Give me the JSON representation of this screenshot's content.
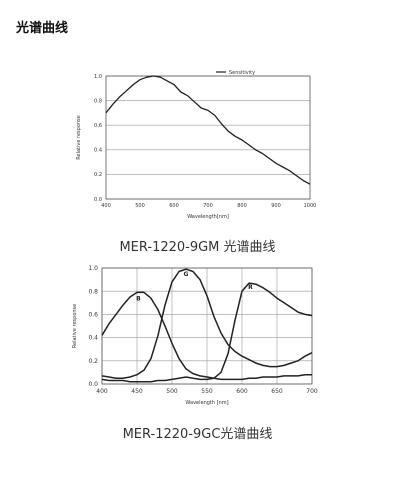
{
  "page": {
    "title": "光谱曲线"
  },
  "captions": {
    "mono": "MER-1220-9GM 光谱曲线",
    "color": "MER-1220-9GC光谱曲线"
  },
  "colors": {
    "line": "#222222",
    "grid": "#9a9a9a",
    "frame": "#555555"
  },
  "chart_data": [
    {
      "type": "line",
      "xlabel": "Wavelength[nm]",
      "ylabel": "Relative response",
      "xlim": [
        400,
        1000
      ],
      "ylim": [
        0,
        1.0
      ],
      "xticks": [
        "400",
        "500",
        "600",
        "700",
        "800",
        "900",
        "1000"
      ],
      "yticks": [
        "0.0",
        "0.2",
        "0.4",
        "0.6",
        "0.8",
        "1.0"
      ],
      "legend": {
        "position": "top-right",
        "entries": [
          "Sensitivity"
        ]
      },
      "grid": "horizontal",
      "series": [
        {
          "name": "Sensitivity",
          "x": [
            400,
            420,
            440,
            460,
            480,
            500,
            520,
            540,
            560,
            580,
            600,
            620,
            640,
            660,
            680,
            700,
            720,
            740,
            760,
            780,
            800,
            820,
            840,
            860,
            880,
            900,
            920,
            940,
            960,
            980,
            1000
          ],
          "y": [
            0.7,
            0.77,
            0.83,
            0.88,
            0.93,
            0.97,
            0.99,
            1.0,
            0.99,
            0.96,
            0.93,
            0.87,
            0.84,
            0.79,
            0.74,
            0.72,
            0.68,
            0.61,
            0.55,
            0.51,
            0.48,
            0.44,
            0.4,
            0.37,
            0.33,
            0.29,
            0.26,
            0.23,
            0.19,
            0.15,
            0.12
          ]
        }
      ]
    },
    {
      "type": "line",
      "xlabel": "Wavelength [nm]",
      "ylabel": "Relative response",
      "xlim": [
        400,
        700
      ],
      "ylim": [
        0,
        1.0
      ],
      "xticks": [
        "400",
        "450",
        "500",
        "550",
        "600",
        "650",
        "700"
      ],
      "yticks": [
        "0.0",
        "0.2",
        "0.4",
        "0.6",
        "0.8",
        "1.0"
      ],
      "grid": "both",
      "series": [
        {
          "name": "B",
          "x": [
            400,
            410,
            420,
            430,
            440,
            450,
            460,
            470,
            480,
            490,
            500,
            510,
            520,
            530,
            540,
            550,
            560,
            570,
            580,
            590,
            600,
            610,
            620,
            630,
            640,
            650,
            660,
            670,
            680,
            690,
            700
          ],
          "y": [
            0.42,
            0.52,
            0.6,
            0.68,
            0.75,
            0.79,
            0.79,
            0.74,
            0.64,
            0.5,
            0.35,
            0.22,
            0.13,
            0.09,
            0.07,
            0.06,
            0.05,
            0.04,
            0.04,
            0.04,
            0.04,
            0.05,
            0.05,
            0.06,
            0.06,
            0.06,
            0.07,
            0.07,
            0.07,
            0.08,
            0.08
          ]
        },
        {
          "name": "G",
          "x": [
            400,
            410,
            420,
            430,
            440,
            450,
            460,
            470,
            480,
            490,
            500,
            510,
            520,
            530,
            540,
            550,
            560,
            570,
            580,
            590,
            600,
            610,
            620,
            630,
            640,
            650,
            660,
            670,
            680,
            690,
            700
          ],
          "y": [
            0.07,
            0.06,
            0.05,
            0.05,
            0.06,
            0.08,
            0.12,
            0.22,
            0.42,
            0.68,
            0.88,
            0.97,
            0.99,
            0.97,
            0.9,
            0.76,
            0.58,
            0.44,
            0.34,
            0.28,
            0.24,
            0.21,
            0.18,
            0.16,
            0.15,
            0.15,
            0.16,
            0.18,
            0.2,
            0.24,
            0.27
          ]
        },
        {
          "name": "R",
          "x": [
            400,
            410,
            420,
            430,
            440,
            450,
            460,
            470,
            480,
            490,
            500,
            510,
            520,
            530,
            540,
            550,
            560,
            570,
            580,
            590,
            600,
            610,
            620,
            630,
            640,
            650,
            660,
            670,
            680,
            690,
            700
          ],
          "y": [
            0.04,
            0.03,
            0.03,
            0.03,
            0.02,
            0.02,
            0.02,
            0.02,
            0.03,
            0.03,
            0.04,
            0.05,
            0.06,
            0.05,
            0.04,
            0.04,
            0.05,
            0.1,
            0.26,
            0.55,
            0.8,
            0.87,
            0.86,
            0.83,
            0.79,
            0.74,
            0.7,
            0.66,
            0.62,
            0.6,
            0.59
          ]
        }
      ]
    }
  ]
}
